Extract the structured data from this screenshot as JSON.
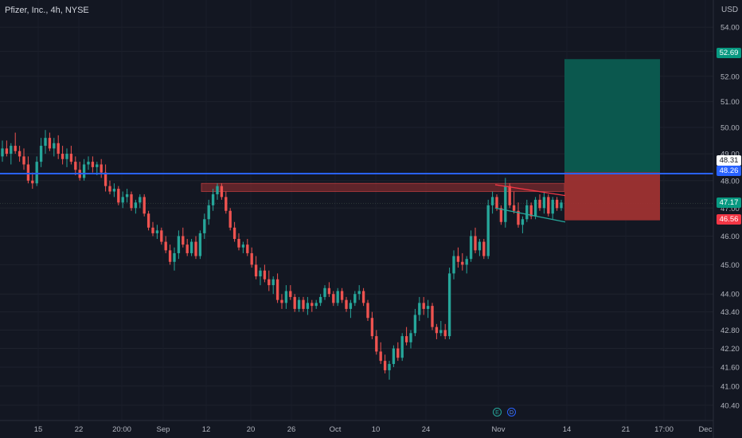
{
  "header": {
    "symbol_title": "Pfizer, Inc., 4h, NYSE",
    "currency": "USD"
  },
  "colors": {
    "background": "#131722",
    "up": "#26a69a",
    "down": "#ef5350",
    "level_line": "#2962ff",
    "target_zone": "#0b5c51",
    "stop_zone": "#9e3232",
    "resistance_zone": "#7a2a2e",
    "axis_text": "#b2b5be"
  },
  "price_labels": {
    "target": {
      "text": "52.69",
      "color": "#089981"
    },
    "level_white": {
      "text": "48.31",
      "color": "#ffffff"
    },
    "level_line": {
      "text": "48.26",
      "color": "#2962ff"
    },
    "current": {
      "text": "47.17",
      "color": "#089981"
    },
    "stop": {
      "text": "46.56",
      "color": "#f23645"
    }
  },
  "events": [
    {
      "letter": "E",
      "kind": "earnings",
      "color": "#26a69a"
    },
    {
      "letter": "D",
      "kind": "dividend",
      "color": "#2962ff"
    }
  ],
  "chart_data": {
    "type": "candlestick",
    "title": "Pfizer, Inc., 4h, NYSE",
    "y_unit": "USD",
    "y_scale": "log",
    "ylim": [
      40.2,
      54.3
    ],
    "y_ticks": [
      54.0,
      53.0,
      52.0,
      51.0,
      50.0,
      49.0,
      48.0,
      47.0,
      46.0,
      45.0,
      44.0,
      43.4,
      42.8,
      42.2,
      41.6,
      41.0,
      40.4
    ],
    "x_ticks": [
      "15",
      "22",
      "20:00",
      "Sep",
      "12",
      "20",
      "26",
      "Oct",
      "10",
      "24",
      "Nov",
      "14",
      "21",
      "17:00",
      "Dec"
    ],
    "grid": true,
    "horizontal_level": 48.26,
    "current_price": 47.17,
    "trade_setup": {
      "entry": 48.31,
      "target": 52.69,
      "stop": 46.56
    },
    "resistance_zone": [
      47.6,
      47.9
    ],
    "candles": [
      {
        "o": 48.9,
        "h": 49.5,
        "l": 48.7,
        "c": 49.2
      },
      {
        "o": 49.2,
        "h": 49.5,
        "l": 48.9,
        "c": 49.0
      },
      {
        "o": 49.0,
        "h": 49.4,
        "l": 48.6,
        "c": 49.3
      },
      {
        "o": 49.3,
        "h": 49.8,
        "l": 49.0,
        "c": 49.1
      },
      {
        "o": 49.1,
        "h": 49.3,
        "l": 48.7,
        "c": 48.9
      },
      {
        "o": 48.9,
        "h": 49.2,
        "l": 48.4,
        "c": 48.6
      },
      {
        "o": 48.6,
        "h": 48.9,
        "l": 47.9,
        "c": 48.0
      },
      {
        "o": 48.0,
        "h": 48.3,
        "l": 47.7,
        "c": 47.9
      },
      {
        "o": 47.9,
        "h": 48.9,
        "l": 47.8,
        "c": 48.7
      },
      {
        "o": 48.7,
        "h": 49.6,
        "l": 48.5,
        "c": 49.3
      },
      {
        "o": 49.3,
        "h": 49.9,
        "l": 49.0,
        "c": 49.6
      },
      {
        "o": 49.6,
        "h": 49.8,
        "l": 49.1,
        "c": 49.2
      },
      {
        "o": 49.2,
        "h": 49.6,
        "l": 48.9,
        "c": 49.4
      },
      {
        "o": 49.4,
        "h": 49.7,
        "l": 48.8,
        "c": 49.0
      },
      {
        "o": 49.0,
        "h": 49.3,
        "l": 48.6,
        "c": 48.8
      },
      {
        "o": 48.8,
        "h": 49.2,
        "l": 48.5,
        "c": 49.0
      },
      {
        "o": 49.0,
        "h": 49.3,
        "l": 48.6,
        "c": 48.7
      },
      {
        "o": 48.7,
        "h": 48.9,
        "l": 48.2,
        "c": 48.4
      },
      {
        "o": 48.4,
        "h": 48.7,
        "l": 48.0,
        "c": 48.1
      },
      {
        "o": 48.1,
        "h": 48.8,
        "l": 48.0,
        "c": 48.6
      },
      {
        "o": 48.6,
        "h": 48.9,
        "l": 48.4,
        "c": 48.7
      },
      {
        "o": 48.7,
        "h": 48.9,
        "l": 48.3,
        "c": 48.5
      },
      {
        "o": 48.5,
        "h": 48.7,
        "l": 48.2,
        "c": 48.6
      },
      {
        "o": 48.6,
        "h": 48.8,
        "l": 48.1,
        "c": 48.3
      },
      {
        "o": 48.3,
        "h": 48.6,
        "l": 47.6,
        "c": 47.8
      },
      {
        "o": 47.8,
        "h": 48.0,
        "l": 47.5,
        "c": 47.6
      },
      {
        "o": 47.6,
        "h": 47.9,
        "l": 47.4,
        "c": 47.7
      },
      {
        "o": 47.7,
        "h": 47.8,
        "l": 47.1,
        "c": 47.2
      },
      {
        "o": 47.2,
        "h": 47.6,
        "l": 47.0,
        "c": 47.4
      },
      {
        "o": 47.4,
        "h": 47.7,
        "l": 47.2,
        "c": 47.5
      },
      {
        "o": 47.5,
        "h": 47.6,
        "l": 46.9,
        "c": 47.0
      },
      {
        "o": 47.0,
        "h": 47.3,
        "l": 46.8,
        "c": 47.2
      },
      {
        "o": 47.2,
        "h": 47.5,
        "l": 47.0,
        "c": 47.4
      },
      {
        "o": 47.4,
        "h": 47.5,
        "l": 46.7,
        "c": 46.8
      },
      {
        "o": 46.8,
        "h": 46.9,
        "l": 46.2,
        "c": 46.3
      },
      {
        "o": 46.3,
        "h": 46.5,
        "l": 46.0,
        "c": 46.1
      },
      {
        "o": 46.1,
        "h": 46.4,
        "l": 45.9,
        "c": 46.2
      },
      {
        "o": 46.2,
        "h": 46.3,
        "l": 45.7,
        "c": 45.8
      },
      {
        "o": 45.8,
        "h": 46.0,
        "l": 45.4,
        "c": 45.5
      },
      {
        "o": 45.5,
        "h": 45.7,
        "l": 45.0,
        "c": 45.1
      },
      {
        "o": 45.1,
        "h": 45.6,
        "l": 44.8,
        "c": 45.4
      },
      {
        "o": 45.4,
        "h": 46.2,
        "l": 45.2,
        "c": 46.0
      },
      {
        "o": 46.0,
        "h": 46.3,
        "l": 45.6,
        "c": 45.7
      },
      {
        "o": 45.7,
        "h": 45.9,
        "l": 45.3,
        "c": 45.4
      },
      {
        "o": 45.4,
        "h": 45.9,
        "l": 45.3,
        "c": 45.8
      },
      {
        "o": 45.8,
        "h": 46.0,
        "l": 45.2,
        "c": 45.3
      },
      {
        "o": 45.3,
        "h": 46.2,
        "l": 45.2,
        "c": 46.1
      },
      {
        "o": 46.1,
        "h": 46.8,
        "l": 45.9,
        "c": 46.6
      },
      {
        "o": 46.6,
        "h": 47.3,
        "l": 46.4,
        "c": 47.1
      },
      {
        "o": 47.1,
        "h": 47.7,
        "l": 46.9,
        "c": 47.5
      },
      {
        "o": 47.5,
        "h": 47.9,
        "l": 47.3,
        "c": 47.8
      },
      {
        "o": 47.8,
        "h": 47.9,
        "l": 47.3,
        "c": 47.4
      },
      {
        "o": 47.4,
        "h": 47.6,
        "l": 46.8,
        "c": 46.9
      },
      {
        "o": 46.9,
        "h": 47.0,
        "l": 46.2,
        "c": 46.3
      },
      {
        "o": 46.3,
        "h": 46.5,
        "l": 45.8,
        "c": 45.9
      },
      {
        "o": 45.9,
        "h": 46.1,
        "l": 45.5,
        "c": 45.6
      },
      {
        "o": 45.6,
        "h": 45.8,
        "l": 45.4,
        "c": 45.7
      },
      {
        "o": 45.7,
        "h": 45.9,
        "l": 45.3,
        "c": 45.4
      },
      {
        "o": 45.4,
        "h": 45.6,
        "l": 44.9,
        "c": 45.0
      },
      {
        "o": 45.0,
        "h": 45.3,
        "l": 44.5,
        "c": 44.6
      },
      {
        "o": 44.6,
        "h": 44.9,
        "l": 44.3,
        "c": 44.8
      },
      {
        "o": 44.8,
        "h": 45.0,
        "l": 44.4,
        "c": 44.5
      },
      {
        "o": 44.5,
        "h": 44.8,
        "l": 44.1,
        "c": 44.3
      },
      {
        "o": 44.3,
        "h": 44.6,
        "l": 44.0,
        "c": 44.5
      },
      {
        "o": 44.5,
        "h": 44.7,
        "l": 43.7,
        "c": 43.8
      },
      {
        "o": 43.8,
        "h": 44.0,
        "l": 43.5,
        "c": 43.7
      },
      {
        "o": 43.7,
        "h": 44.3,
        "l": 43.5,
        "c": 44.1
      },
      {
        "o": 44.1,
        "h": 44.3,
        "l": 43.8,
        "c": 43.9
      },
      {
        "o": 43.9,
        "h": 44.0,
        "l": 43.4,
        "c": 43.5
      },
      {
        "o": 43.5,
        "h": 43.9,
        "l": 43.4,
        "c": 43.8
      },
      {
        "o": 43.8,
        "h": 43.9,
        "l": 43.4,
        "c": 43.5
      },
      {
        "o": 43.5,
        "h": 43.9,
        "l": 43.3,
        "c": 43.7
      },
      {
        "o": 43.7,
        "h": 43.8,
        "l": 43.4,
        "c": 43.6
      },
      {
        "o": 43.6,
        "h": 43.8,
        "l": 43.5,
        "c": 43.7
      },
      {
        "o": 43.7,
        "h": 44.0,
        "l": 43.6,
        "c": 43.9
      },
      {
        "o": 43.9,
        "h": 44.3,
        "l": 43.8,
        "c": 44.2
      },
      {
        "o": 44.2,
        "h": 44.4,
        "l": 43.9,
        "c": 44.0
      },
      {
        "o": 44.0,
        "h": 44.1,
        "l": 43.6,
        "c": 43.7
      },
      {
        "o": 43.7,
        "h": 44.2,
        "l": 43.6,
        "c": 44.1
      },
      {
        "o": 44.1,
        "h": 44.2,
        "l": 43.7,
        "c": 43.8
      },
      {
        "o": 43.8,
        "h": 43.9,
        "l": 43.4,
        "c": 43.5
      },
      {
        "o": 43.5,
        "h": 43.8,
        "l": 43.2,
        "c": 43.7
      },
      {
        "o": 43.7,
        "h": 44.1,
        "l": 43.6,
        "c": 44.0
      },
      {
        "o": 44.0,
        "h": 44.3,
        "l": 43.8,
        "c": 44.1
      },
      {
        "o": 44.1,
        "h": 44.2,
        "l": 43.6,
        "c": 43.7
      },
      {
        "o": 43.7,
        "h": 43.8,
        "l": 43.1,
        "c": 43.2
      },
      {
        "o": 43.2,
        "h": 43.4,
        "l": 42.5,
        "c": 42.6
      },
      {
        "o": 42.6,
        "h": 42.8,
        "l": 42.0,
        "c": 42.1
      },
      {
        "o": 42.1,
        "h": 42.4,
        "l": 41.7,
        "c": 41.8
      },
      {
        "o": 41.8,
        "h": 42.0,
        "l": 41.4,
        "c": 41.5
      },
      {
        "o": 41.5,
        "h": 41.8,
        "l": 41.2,
        "c": 41.7
      },
      {
        "o": 41.7,
        "h": 42.3,
        "l": 41.6,
        "c": 42.2
      },
      {
        "o": 42.2,
        "h": 42.4,
        "l": 41.8,
        "c": 41.9
      },
      {
        "o": 41.9,
        "h": 42.7,
        "l": 41.8,
        "c": 42.6
      },
      {
        "o": 42.6,
        "h": 42.9,
        "l": 42.3,
        "c": 42.4
      },
      {
        "o": 42.4,
        "h": 42.8,
        "l": 42.2,
        "c": 42.7
      },
      {
        "o": 42.7,
        "h": 43.5,
        "l": 42.6,
        "c": 43.3
      },
      {
        "o": 43.3,
        "h": 43.9,
        "l": 43.1,
        "c": 43.7
      },
      {
        "o": 43.7,
        "h": 43.9,
        "l": 43.3,
        "c": 43.5
      },
      {
        "o": 43.5,
        "h": 43.8,
        "l": 43.2,
        "c": 43.6
      },
      {
        "o": 43.6,
        "h": 43.7,
        "l": 42.8,
        "c": 42.9
      },
      {
        "o": 42.9,
        "h": 43.0,
        "l": 42.5,
        "c": 42.7
      },
      {
        "o": 42.7,
        "h": 43.1,
        "l": 42.6,
        "c": 42.8
      },
      {
        "o": 42.8,
        "h": 43.0,
        "l": 42.5,
        "c": 42.6
      },
      {
        "o": 42.6,
        "h": 44.9,
        "l": 42.5,
        "c": 44.7
      },
      {
        "o": 44.7,
        "h": 45.5,
        "l": 44.5,
        "c": 45.3
      },
      {
        "o": 45.3,
        "h": 45.6,
        "l": 44.9,
        "c": 45.1
      },
      {
        "o": 45.1,
        "h": 45.4,
        "l": 44.8,
        "c": 45.0
      },
      {
        "o": 45.0,
        "h": 45.3,
        "l": 44.7,
        "c": 45.2
      },
      {
        "o": 45.2,
        "h": 46.2,
        "l": 45.1,
        "c": 46.0
      },
      {
        "o": 46.0,
        "h": 46.3,
        "l": 45.4,
        "c": 45.5
      },
      {
        "o": 45.5,
        "h": 45.9,
        "l": 45.3,
        "c": 45.8
      },
      {
        "o": 45.8,
        "h": 45.9,
        "l": 45.2,
        "c": 45.3
      },
      {
        "o": 45.3,
        "h": 47.3,
        "l": 45.2,
        "c": 47.1
      },
      {
        "o": 47.1,
        "h": 47.6,
        "l": 46.8,
        "c": 47.4
      },
      {
        "o": 47.4,
        "h": 47.5,
        "l": 46.9,
        "c": 47.0
      },
      {
        "o": 47.0,
        "h": 47.1,
        "l": 46.4,
        "c": 46.5
      },
      {
        "o": 46.5,
        "h": 48.1,
        "l": 46.3,
        "c": 47.8
      },
      {
        "o": 47.8,
        "h": 47.9,
        "l": 47.0,
        "c": 47.1
      },
      {
        "o": 47.1,
        "h": 47.6,
        "l": 46.8,
        "c": 46.9
      },
      {
        "o": 46.9,
        "h": 47.2,
        "l": 46.3,
        "c": 46.4
      },
      {
        "o": 46.4,
        "h": 46.7,
        "l": 46.1,
        "c": 46.6
      },
      {
        "o": 46.6,
        "h": 47.3,
        "l": 46.5,
        "c": 47.1
      },
      {
        "o": 47.1,
        "h": 47.2,
        "l": 46.6,
        "c": 46.7
      },
      {
        "o": 46.7,
        "h": 47.4,
        "l": 46.6,
        "c": 47.3
      },
      {
        "o": 47.3,
        "h": 47.5,
        "l": 46.9,
        "c": 47.0
      },
      {
        "o": 47.0,
        "h": 47.6,
        "l": 46.8,
        "c": 47.4
      },
      {
        "o": 47.4,
        "h": 47.5,
        "l": 46.7,
        "c": 46.8
      },
      {
        "o": 46.8,
        "h": 47.4,
        "l": 46.6,
        "c": 47.3
      },
      {
        "o": 47.3,
        "h": 47.4,
        "l": 46.9,
        "c": 47.0
      },
      {
        "o": 47.0,
        "h": 47.3,
        "l": 46.9,
        "c": 47.2
      }
    ]
  }
}
